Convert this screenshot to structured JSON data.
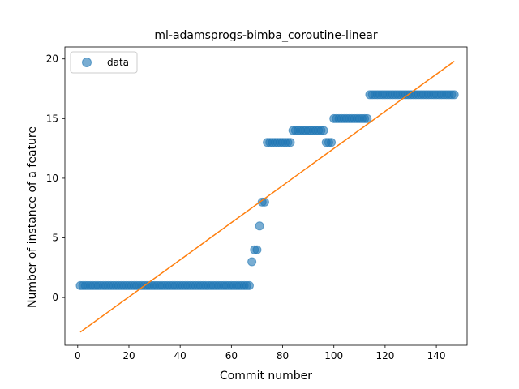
{
  "chart_data": {
    "type": "scatter",
    "title": "ml-adamsprogs-bimba_coroutine-linear",
    "xlabel": "Commit number",
    "ylabel": "Number of instance of a feature",
    "xlim": [
      -5,
      152
    ],
    "ylim": [
      -4,
      21
    ],
    "xticks": [
      0,
      20,
      40,
      60,
      80,
      100,
      120,
      140
    ],
    "yticks": [
      0,
      5,
      10,
      15,
      20
    ],
    "legend": {
      "entries": [
        "data"
      ],
      "placement": "top-left"
    },
    "series": [
      {
        "name": "data",
        "kind": "scatter",
        "color": "#1f77b4",
        "points": [
          {
            "x_from": 1,
            "x_to": 67,
            "y": 1
          },
          {
            "x_from": 68,
            "x_to": 68,
            "y": 3
          },
          {
            "x_from": 69,
            "x_to": 70,
            "y": 4
          },
          {
            "x_from": 71,
            "x_to": 71,
            "y": 6
          },
          {
            "x_from": 72,
            "x_to": 73,
            "y": 8
          },
          {
            "x_from": 74,
            "x_to": 83,
            "y": 13
          },
          {
            "x_from": 84,
            "x_to": 96,
            "y": 14
          },
          {
            "x_from": 97,
            "x_to": 99,
            "y": 13
          },
          {
            "x_from": 100,
            "x_to": 113,
            "y": 15
          },
          {
            "x_from": 114,
            "x_to": 147,
            "y": 17
          }
        ]
      },
      {
        "name": "",
        "kind": "line",
        "color": "#ff7f0e",
        "x": [
          1,
          147
        ],
        "y": [
          -2.9,
          19.8
        ]
      }
    ]
  }
}
